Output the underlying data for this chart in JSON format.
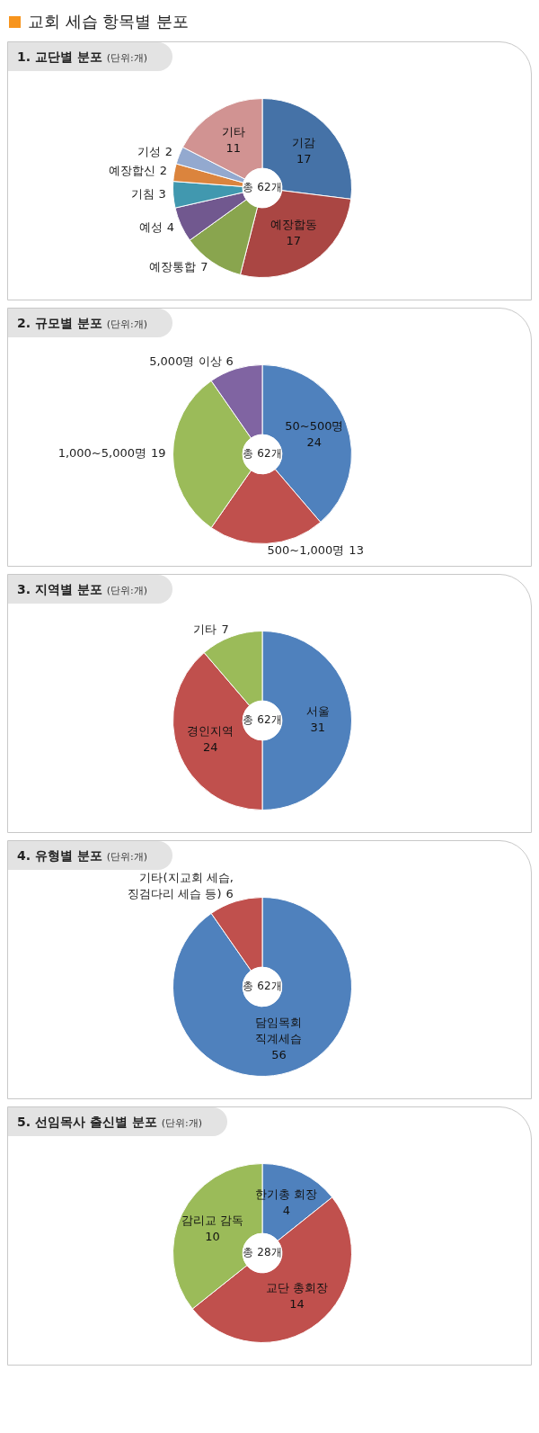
{
  "chart_data": [
    {
      "type": "other",
      "title": "교회 세습 항목별 분포"
    },
    {
      "type": "donut",
      "title": "1. 교단별 분포",
      "subtitle": "(단위:개)",
      "categories": [
        "기감",
        "예장합동",
        "예장통합",
        "예성",
        "기침",
        "예장합신",
        "기성",
        "기타"
      ],
      "values": [
        17,
        17,
        7,
        4,
        3,
        2,
        2,
        11
      ],
      "colors": [
        "#4572a7",
        "#aa4643",
        "#89a54e",
        "#71588f",
        "#4198af",
        "#db843d",
        "#93a9cf",
        "#d19392"
      ],
      "data_labels": true,
      "annotations": [
        "총 62개"
      ]
    },
    {
      "type": "donut",
      "title": "2. 규모별 분포",
      "subtitle": "(단위:개)",
      "categories": [
        "50~500명",
        "500~1,000명",
        "1,000~5,000명",
        "5,000명 이상"
      ],
      "values": [
        24,
        13,
        19,
        6
      ],
      "colors": [
        "#4f81bd",
        "#c0504d",
        "#9bbb59",
        "#8064a2"
      ],
      "data_labels": true,
      "annotations": [
        "총 62개"
      ]
    },
    {
      "type": "donut",
      "title": "3. 지역별 분포",
      "subtitle": "(단위:개)",
      "categories": [
        "서울",
        "경인지역",
        "기타"
      ],
      "values": [
        31,
        24,
        7
      ],
      "colors": [
        "#4f81bd",
        "#c0504d",
        "#9bbb59"
      ],
      "data_labels": true,
      "annotations": [
        "총 62개"
      ]
    },
    {
      "type": "donut",
      "title": "4. 유형별 분포",
      "subtitle": "(단위:개)",
      "categories": [
        "담임목회 직계세습",
        "기타(지교회 세습, 징검다리 세습 등)"
      ],
      "values": [
        56,
        6
      ],
      "colors": [
        "#4f81bd",
        "#c0504d"
      ],
      "data_labels": true,
      "annotations": [
        "총 62개"
      ]
    },
    {
      "type": "donut",
      "title": "5. 선임목사 출신별 분포",
      "subtitle": "(단위:개)",
      "categories": [
        "한기총 회장",
        "교단 총회장",
        "감리교 감독"
      ],
      "values": [
        4,
        14,
        10
      ],
      "colors": [
        "#4f81bd",
        "#c0504d",
        "#9bbb59"
      ],
      "data_labels": true,
      "annotations": [
        "총 28개"
      ]
    }
  ]
}
